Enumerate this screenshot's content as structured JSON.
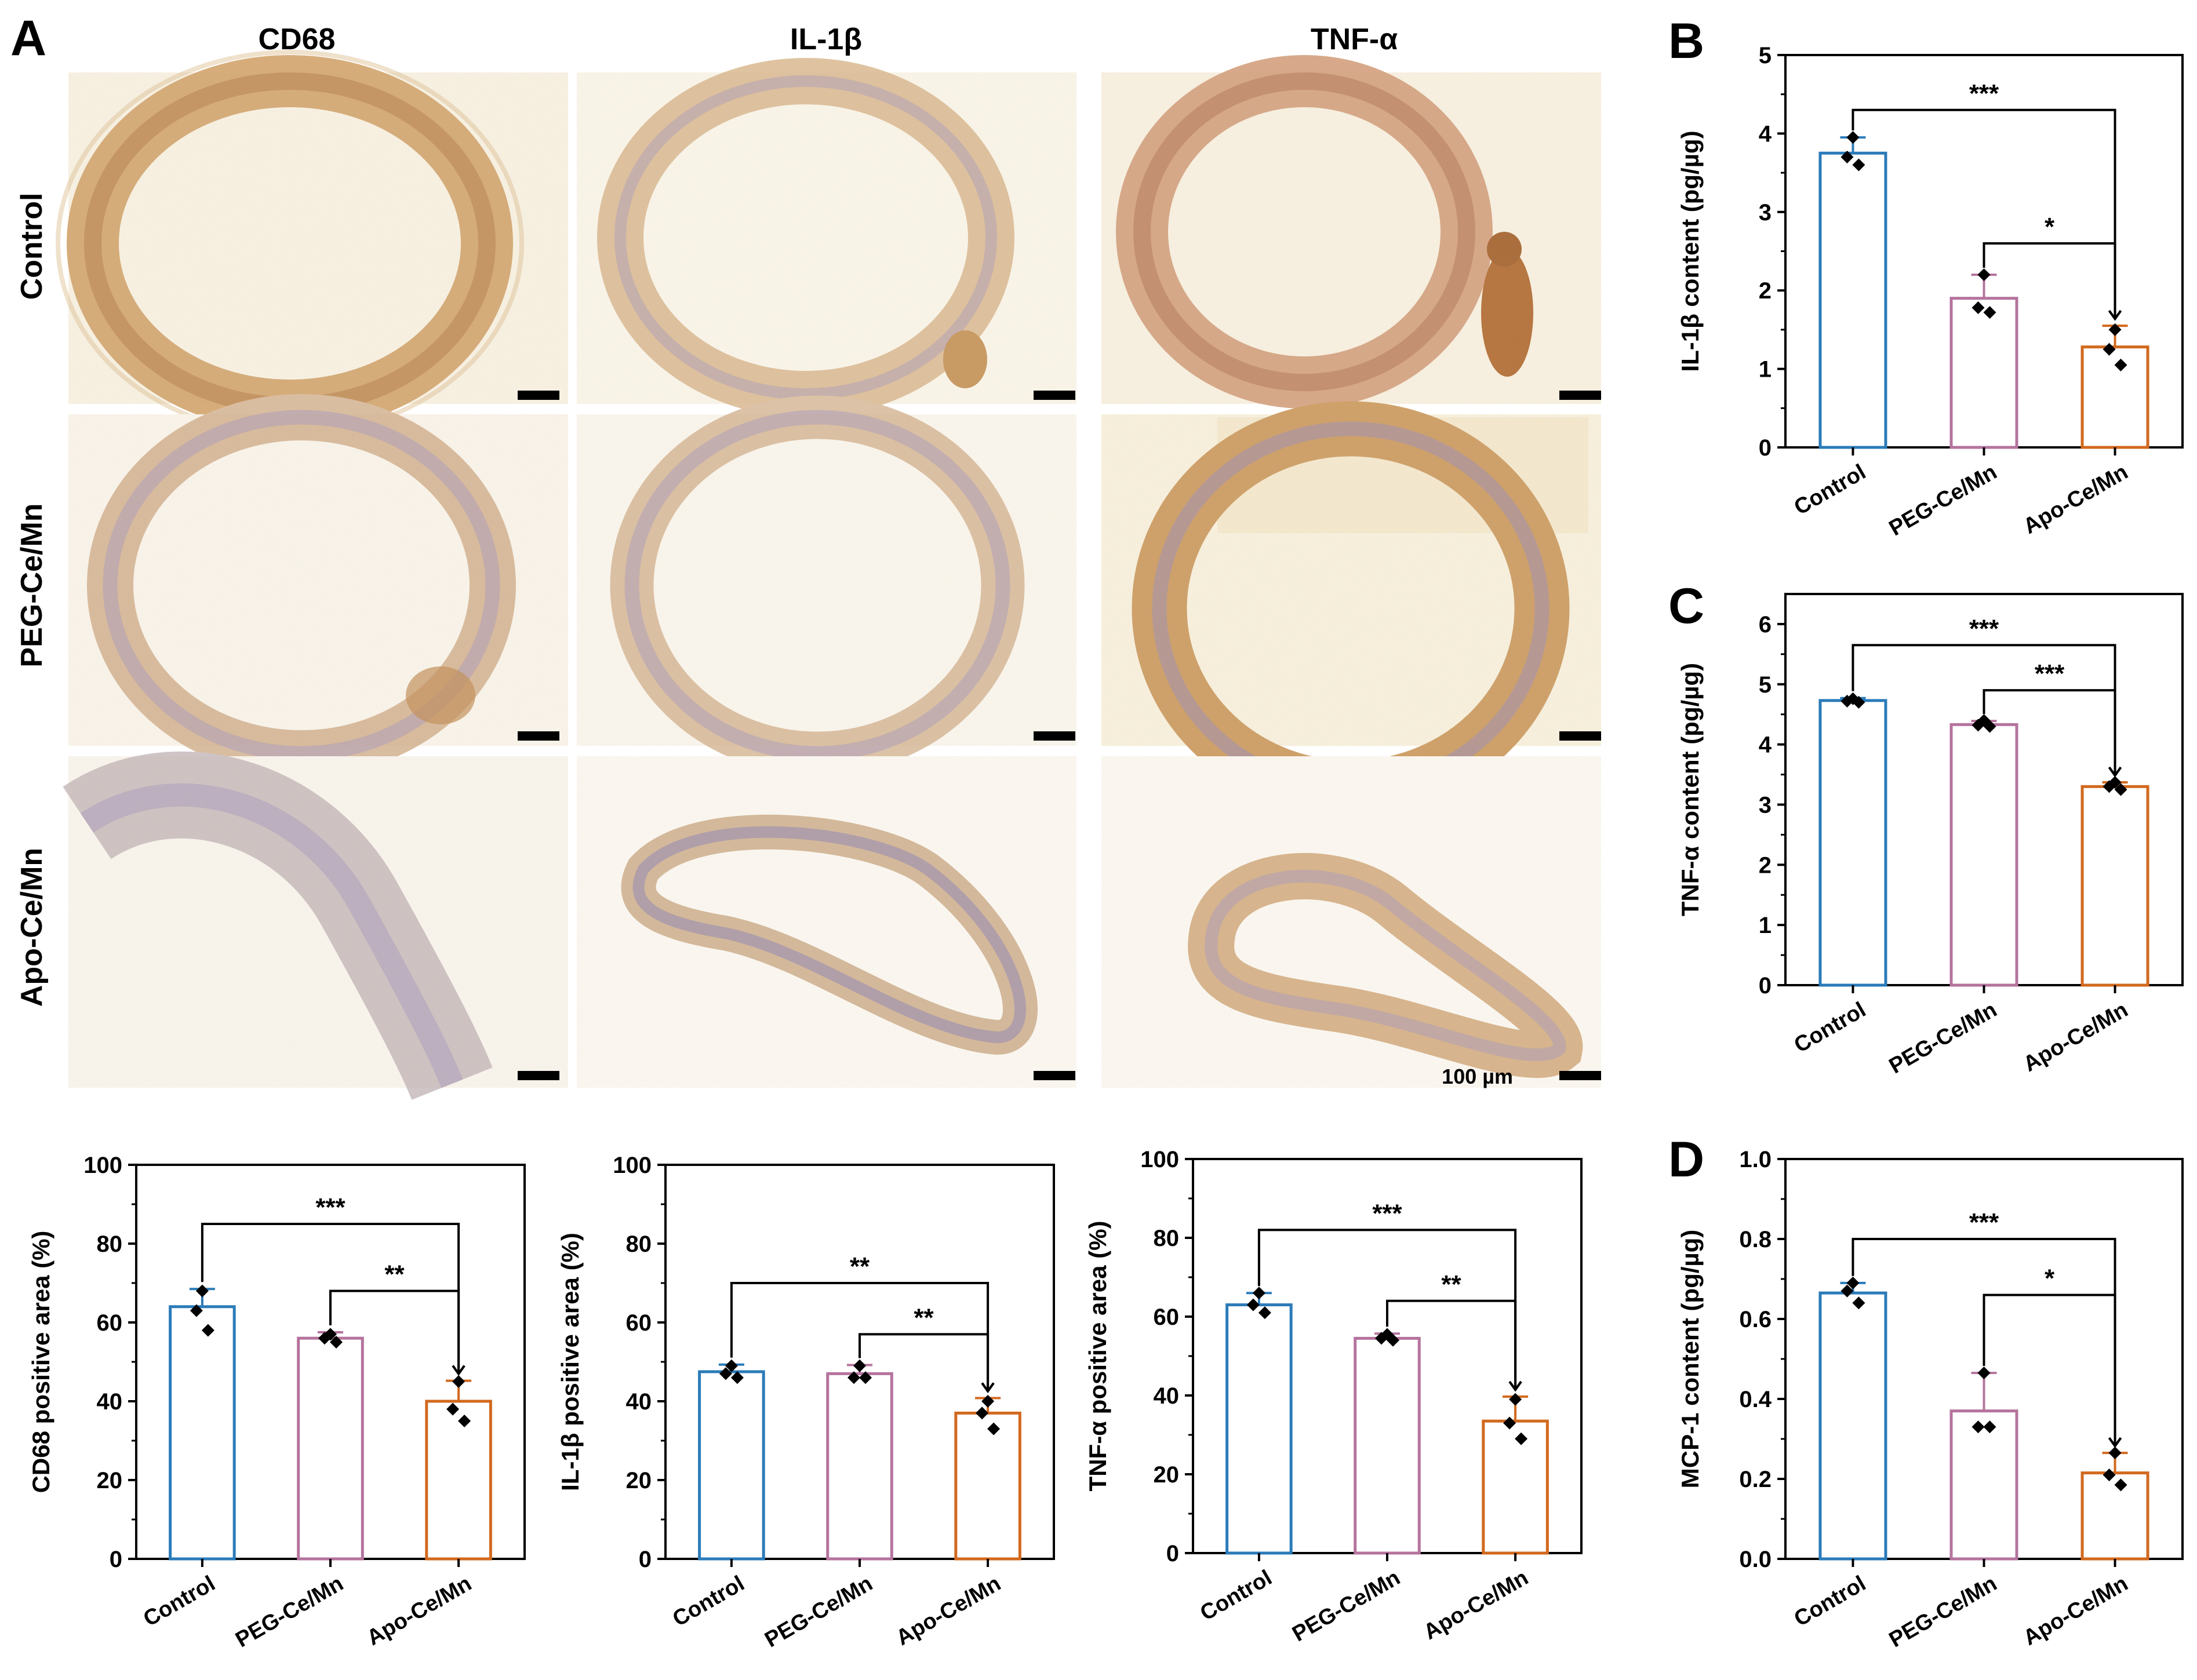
{
  "colors": {
    "series": [
      "#2b7bb9",
      "#b5739d",
      "#d2691e"
    ],
    "tissue_bg": "#fbf8f0",
    "tissue_wall": "#d9b48a",
    "tissue_wall_blue": "#b7a7c4",
    "marker": "#000000"
  },
  "panel_A": {
    "letter": "A",
    "column_headers": [
      "CD68",
      "IL-1β",
      "TNF-α"
    ],
    "row_headers": [
      "Control",
      "PEG-Ce/Mn",
      "Apo-Ce/Mn"
    ],
    "scale_bar_label": "100 µm"
  },
  "chart_data": [
    {
      "id": "cd68",
      "type": "bar",
      "panel_letter": "",
      "title": "",
      "categories": [
        "Control",
        "PEG-Ce/Mn",
        "Apo-Ce/Mn"
      ],
      "values": [
        64,
        56,
        40
      ],
      "errors": [
        4.5,
        1.5,
        5.2
      ],
      "points": [
        [
          68,
          63,
          58
        ],
        [
          57,
          56,
          55
        ],
        [
          45,
          38,
          35
        ]
      ],
      "ylabel": "CD68 positive area (%)",
      "xlabel": "",
      "ylim": [
        0,
        100
      ],
      "yticks": [
        0,
        20,
        40,
        60,
        80,
        100
      ],
      "tick_labels": [
        "0",
        "20",
        "40",
        "60",
        "80",
        "100"
      ],
      "significance": [
        {
          "from": 0,
          "to": 2,
          "label": "***",
          "y": 85
        },
        {
          "from": 1,
          "to": 2,
          "label": "**",
          "y": 68
        }
      ]
    },
    {
      "id": "il1b_area",
      "type": "bar",
      "panel_letter": "",
      "title": "",
      "categories": [
        "Control",
        "PEG-Ce/Mn",
        "Apo-Ce/Mn"
      ],
      "values": [
        47.5,
        47,
        37
      ],
      "errors": [
        1.8,
        2.2,
        3.8
      ],
      "points": [
        [
          49,
          47,
          46
        ],
        [
          49,
          46,
          46
        ],
        [
          40,
          37,
          33
        ]
      ],
      "ylabel": "IL-1β positive area (%)",
      "xlabel": "",
      "ylim": [
        0,
        100
      ],
      "yticks": [
        0,
        20,
        40,
        60,
        80,
        100
      ],
      "tick_labels": [
        "0",
        "20",
        "40",
        "60",
        "80",
        "100"
      ],
      "significance": [
        {
          "from": 0,
          "to": 2,
          "label": "**",
          "y": 70
        },
        {
          "from": 1,
          "to": 2,
          "label": "**",
          "y": 57
        }
      ]
    },
    {
      "id": "tnfa_area",
      "type": "bar",
      "panel_letter": "",
      "title": "",
      "categories": [
        "Control",
        "PEG-Ce/Mn",
        "Apo-Ce/Mn"
      ],
      "values": [
        63,
        54.5,
        33.5
      ],
      "errors": [
        3,
        1.2,
        6.2
      ],
      "points": [
        [
          66,
          63,
          61
        ],
        [
          55.5,
          54.5,
          54
        ],
        [
          39,
          33,
          29
        ]
      ],
      "ylabel": "TNF-α positive area (%)",
      "xlabel": "",
      "ylim": [
        0,
        100
      ],
      "yticks": [
        0,
        20,
        40,
        60,
        80,
        100
      ],
      "tick_labels": [
        "0",
        "20",
        "40",
        "60",
        "80",
        "100"
      ],
      "significance": [
        {
          "from": 0,
          "to": 2,
          "label": "***",
          "y": 82
        },
        {
          "from": 1,
          "to": 2,
          "label": "**",
          "y": 64
        }
      ]
    },
    {
      "id": "il1b_content",
      "type": "bar",
      "panel_letter": "B",
      "title": "",
      "categories": [
        "Control",
        "PEG-Ce/Mn",
        "Apo-Ce/Mn"
      ],
      "values": [
        3.75,
        1.9,
        1.28
      ],
      "errors": [
        0.2,
        0.3,
        0.27
      ],
      "points": [
        [
          3.95,
          3.7,
          3.6
        ],
        [
          2.2,
          1.78,
          1.72
        ],
        [
          1.5,
          1.25,
          1.05
        ]
      ],
      "ylabel": "IL-1β content (pg/µg)",
      "xlabel": "",
      "ylim": [
        0,
        5
      ],
      "yticks": [
        0,
        1,
        2,
        3,
        4,
        5
      ],
      "tick_labels": [
        "0",
        "1",
        "2",
        "3",
        "4",
        "5"
      ],
      "significance": [
        {
          "from": 0,
          "to": 2,
          "label": "***",
          "y": 4.3
        },
        {
          "from": 1,
          "to": 2,
          "label": "*",
          "y": 2.6
        }
      ]
    },
    {
      "id": "tnfa_content",
      "type": "bar",
      "panel_letter": "C",
      "title": "",
      "categories": [
        "Control",
        "PEG-Ce/Mn",
        "Apo-Ce/Mn"
      ],
      "values": [
        4.73,
        4.33,
        3.3
      ],
      "errors": [
        0.04,
        0.06,
        0.07
      ],
      "points": [
        [
          4.76,
          4.72,
          4.7
        ],
        [
          4.4,
          4.32,
          4.3
        ],
        [
          3.37,
          3.3,
          3.25
        ]
      ],
      "ylabel": "TNF-α content (pg/µg)",
      "xlabel": "",
      "ylim": [
        0,
        6.5
      ],
      "yticks": [
        0,
        1,
        2,
        3,
        4,
        5,
        6
      ],
      "tick_labels": [
        "0",
        "1",
        "2",
        "3",
        "4",
        "5",
        "6"
      ],
      "significance": [
        {
          "from": 0,
          "to": 2,
          "label": "***",
          "y": 5.65
        },
        {
          "from": 1,
          "to": 2,
          "label": "***",
          "y": 4.9
        }
      ]
    },
    {
      "id": "mcp1_content",
      "type": "bar",
      "panel_letter": "D",
      "title": "",
      "categories": [
        "Control",
        "PEG-Ce/Mn",
        "Apo-Ce/Mn"
      ],
      "values": [
        0.665,
        0.37,
        0.215
      ],
      "errors": [
        0.025,
        0.095,
        0.05
      ],
      "points": [
        [
          0.69,
          0.67,
          0.64
        ],
        [
          0.465,
          0.33,
          0.33
        ],
        [
          0.265,
          0.21,
          0.185
        ]
      ],
      "ylabel": "MCP-1 content (pg/µg)",
      "xlabel": "",
      "ylim": [
        0,
        1.0
      ],
      "yticks": [
        0,
        0.2,
        0.4,
        0.6,
        0.8,
        1.0
      ],
      "tick_labels": [
        "0.0",
        "0.2",
        "0.4",
        "0.6",
        "0.8",
        "1.0"
      ],
      "significance": [
        {
          "from": 0,
          "to": 2,
          "label": "***",
          "y": 0.8
        },
        {
          "from": 1,
          "to": 2,
          "label": "*",
          "y": 0.66
        }
      ]
    }
  ]
}
